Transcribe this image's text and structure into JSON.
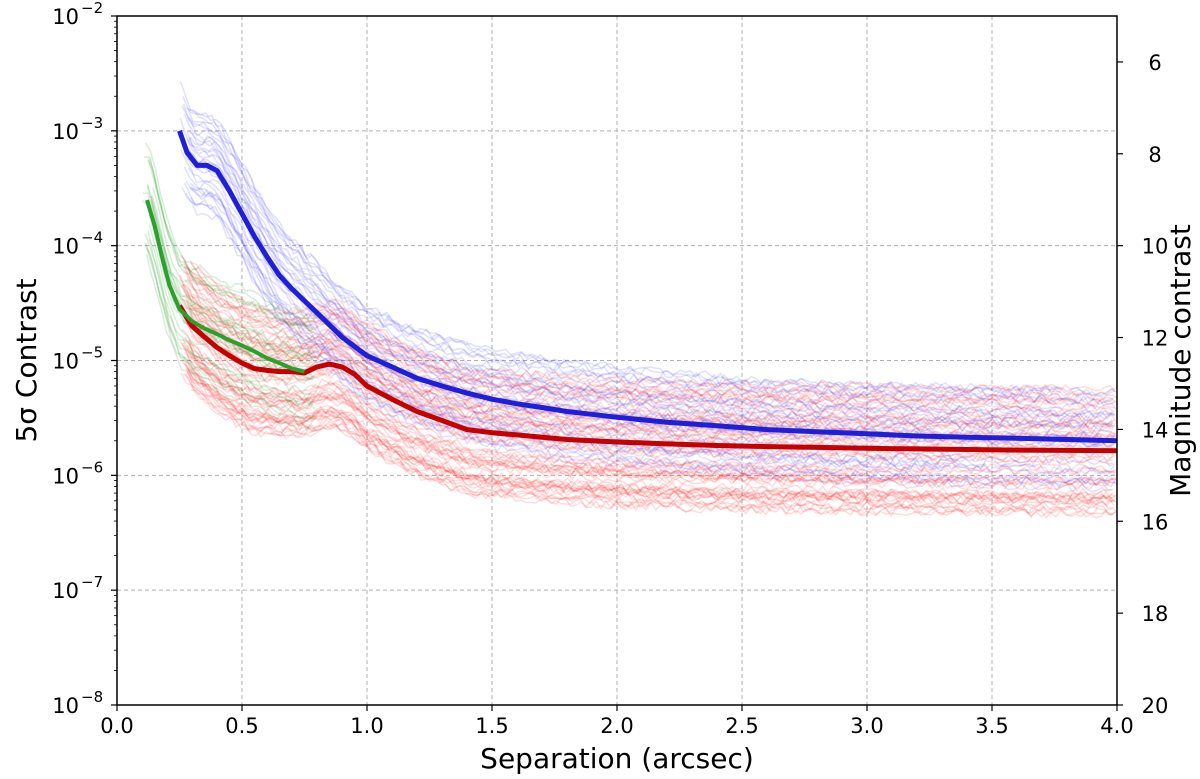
{
  "chart_data": {
    "type": "line",
    "title": "",
    "xlabel": "Separation (arcsec)",
    "ylabel": "5σ Contrast",
    "ylabel_right": "Magnitude contrast",
    "xlim": [
      0.0,
      4.0
    ],
    "ylim": [
      1e-08,
      0.01
    ],
    "yscale": "log",
    "grid": true,
    "x_ticks": [
      0.0,
      0.5,
      1.0,
      1.5,
      2.0,
      2.5,
      3.0,
      3.5,
      4.0
    ],
    "x_tick_labels": [
      "0.0",
      "0.5",
      "1.0",
      "1.5",
      "2.0",
      "2.5",
      "3.0",
      "3.5",
      "4.0"
    ],
    "y_ticks": [
      {
        "base": "10",
        "exp": "−2",
        "value": 0.01
      },
      {
        "base": "10",
        "exp": "−3",
        "value": 0.001
      },
      {
        "base": "10",
        "exp": "−4",
        "value": 0.0001
      },
      {
        "base": "10",
        "exp": "−5",
        "value": 1e-05
      },
      {
        "base": "10",
        "exp": "−6",
        "value": 1e-06
      },
      {
        "base": "10",
        "exp": "−7",
        "value": 1e-07
      },
      {
        "base": "10",
        "exp": "−8",
        "value": 1e-08
      }
    ],
    "right_axis_ticks": [
      6,
      8,
      10,
      12,
      14,
      16,
      18,
      20
    ],
    "right_axis_tick_labels": [
      "6",
      "8",
      "10",
      "12",
      "14",
      "16",
      "18",
      "20"
    ],
    "series": [
      {
        "name": "blue median",
        "color": "#1f1fd8",
        "x": [
          0.25,
          0.28,
          0.32,
          0.36,
          0.4,
          0.45,
          0.5,
          0.55,
          0.6,
          0.65,
          0.7,
          0.8,
          0.9,
          1.0,
          1.1,
          1.2,
          1.3,
          1.4,
          1.5,
          1.6,
          1.7,
          1.8,
          1.9,
          2.0,
          2.2,
          2.4,
          2.6,
          2.8,
          3.0,
          3.2,
          3.4,
          3.6,
          3.8,
          4.0
        ],
        "y": [
          0.001,
          0.00065,
          0.0005,
          0.0005,
          0.00045,
          0.0003,
          0.00019,
          0.00012,
          8e-05,
          5.5e-05,
          4.2e-05,
          2.6e-05,
          1.6e-05,
          1.1e-05,
          8.8e-06,
          7e-06,
          6e-06,
          5.2e-06,
          4.6e-06,
          4.2e-06,
          3.9e-06,
          3.6e-06,
          3.4e-06,
          3.2e-06,
          2.9e-06,
          2.7e-06,
          2.5e-06,
          2.4e-06,
          2.3e-06,
          2.2e-06,
          2.15e-06,
          2.1e-06,
          2.05e-06,
          2e-06
        ]
      },
      {
        "name": "red median",
        "color": "#c40000",
        "x": [
          0.25,
          0.3,
          0.35,
          0.4,
          0.45,
          0.5,
          0.55,
          0.6,
          0.65,
          0.7,
          0.75,
          0.8,
          0.85,
          0.9,
          0.95,
          1.0,
          1.1,
          1.2,
          1.3,
          1.4,
          1.5,
          1.6,
          1.7,
          1.8,
          2.0,
          2.2,
          2.4,
          2.6,
          2.8,
          3.0,
          3.2,
          3.4,
          3.6,
          3.8,
          4.0
        ],
        "y": [
          3e-05,
          2e-05,
          1.6e-05,
          1.3e-05,
          1.1e-05,
          9.5e-06,
          8.5e-06,
          8.2e-06,
          8e-06,
          8e-06,
          7.8e-06,
          8.8e-06,
          9.3e-06,
          8.8e-06,
          7.6e-06,
          6e-06,
          4.6e-06,
          3.6e-06,
          3e-06,
          2.5e-06,
          2.35e-06,
          2.25e-06,
          2.15e-06,
          2.05e-06,
          1.95e-06,
          1.88e-06,
          1.82e-06,
          1.78e-06,
          1.75e-06,
          1.72e-06,
          1.7e-06,
          1.68e-06,
          1.66e-06,
          1.65e-06,
          1.64e-06
        ]
      },
      {
        "name": "green median",
        "color": "#2ca02c",
        "x": [
          0.12,
          0.15,
          0.18,
          0.21,
          0.25,
          0.3,
          0.35,
          0.4,
          0.45,
          0.5,
          0.55,
          0.6,
          0.65,
          0.7,
          0.75
        ],
        "y": [
          0.00025,
          0.00015,
          8e-05,
          4.5e-05,
          2.8e-05,
          2.2e-05,
          1.9e-05,
          1.7e-05,
          1.5e-05,
          1.35e-05,
          1.2e-05,
          1.05e-05,
          9.5e-06,
          8.5e-06,
          8e-06
        ]
      }
    ]
  }
}
